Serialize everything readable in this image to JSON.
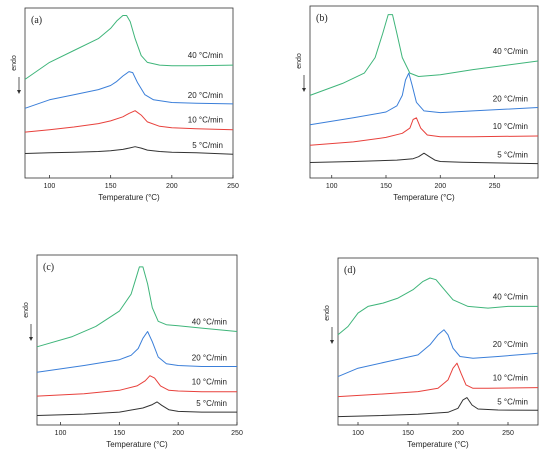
{
  "figure": {
    "endo_label": "endo"
  },
  "chart_data": [
    {
      "type": "line",
      "panel_label": "(a)",
      "xlabel": "Temperature (°C)",
      "ylabel": "",
      "xlim": [
        80,
        250
      ],
      "xticks": [
        100,
        150,
        200,
        250
      ],
      "ylim": [
        0,
        5
      ],
      "grid": false,
      "series": [
        {
          "name": "5 °C/min",
          "color": "#333333",
          "x": [
            80,
            100,
            120,
            140,
            150,
            160,
            165,
            170,
            175,
            180,
            190,
            200,
            220,
            250
          ],
          "y": [
            0.72,
            0.74,
            0.76,
            0.78,
            0.8,
            0.84,
            0.88,
            0.92,
            0.88,
            0.82,
            0.78,
            0.76,
            0.74,
            0.7
          ]
        },
        {
          "name": "10 °C/min",
          "color": "#e8413c",
          "x": [
            80,
            100,
            120,
            140,
            150,
            160,
            165,
            170,
            175,
            180,
            190,
            200,
            220,
            250
          ],
          "y": [
            1.35,
            1.42,
            1.5,
            1.6,
            1.68,
            1.8,
            1.9,
            1.98,
            1.85,
            1.65,
            1.52,
            1.48,
            1.45,
            1.42
          ]
        },
        {
          "name": "20 °C/min",
          "color": "#3b7fd9",
          "x": [
            80,
            100,
            120,
            140,
            150,
            155,
            160,
            165,
            168,
            172,
            178,
            185,
            200,
            220,
            250
          ],
          "y": [
            2.05,
            2.3,
            2.45,
            2.6,
            2.72,
            2.84,
            3.0,
            3.13,
            3.1,
            2.8,
            2.45,
            2.3,
            2.22,
            2.2,
            2.18
          ]
        },
        {
          "name": "40 °C/min",
          "color": "#3fb57a",
          "x": [
            80,
            100,
            120,
            140,
            150,
            155,
            160,
            163,
            166,
            170,
            175,
            180,
            190,
            200,
            220,
            250
          ],
          "y": [
            2.9,
            3.4,
            3.75,
            4.1,
            4.4,
            4.62,
            4.78,
            4.78,
            4.6,
            4.1,
            3.6,
            3.4,
            3.32,
            3.3,
            3.3,
            3.32
          ]
        }
      ]
    },
    {
      "type": "line",
      "panel_label": "(b)",
      "xlabel": "Temperature (°C)",
      "ylabel": "",
      "xlim": [
        80,
        290
      ],
      "xticks": [
        100,
        150,
        200,
        250
      ],
      "ylim": [
        0,
        5
      ],
      "grid": false,
      "series": [
        {
          "name": "5 °C/min",
          "color": "#333333",
          "x": [
            80,
            120,
            160,
            175,
            180,
            185,
            190,
            195,
            200,
            220,
            250,
            290
          ],
          "y": [
            0.45,
            0.48,
            0.52,
            0.56,
            0.62,
            0.72,
            0.62,
            0.52,
            0.48,
            0.46,
            0.44,
            0.42
          ]
        },
        {
          "name": "10 °C/min",
          "color": "#e8413c",
          "x": [
            80,
            120,
            150,
            165,
            172,
            175,
            178,
            182,
            188,
            200,
            230,
            290
          ],
          "y": [
            0.95,
            1.05,
            1.18,
            1.3,
            1.45,
            1.7,
            1.75,
            1.45,
            1.25,
            1.2,
            1.2,
            1.22
          ]
        },
        {
          "name": "20 °C/min",
          "color": "#3b7fd9",
          "x": [
            80,
            120,
            150,
            160,
            165,
            168,
            171,
            174,
            178,
            185,
            200,
            230,
            290
          ],
          "y": [
            1.55,
            1.75,
            1.92,
            2.1,
            2.4,
            2.85,
            3.05,
            2.7,
            2.2,
            1.95,
            1.9,
            1.95,
            2.05
          ]
        },
        {
          "name": "40 °C/min",
          "color": "#3fb57a",
          "x": [
            80,
            110,
            130,
            140,
            147,
            152,
            156,
            160,
            165,
            172,
            180,
            200,
            230,
            290
          ],
          "y": [
            2.4,
            2.75,
            3.05,
            3.5,
            4.2,
            4.75,
            4.75,
            4.2,
            3.5,
            3.05,
            2.95,
            3.0,
            3.15,
            3.4
          ]
        }
      ]
    },
    {
      "type": "line",
      "panel_label": "(c)",
      "xlabel": "Temperature (°C)",
      "ylabel": "",
      "xlim": [
        80,
        250
      ],
      "xticks": [
        100,
        150,
        200,
        250
      ],
      "ylim": [
        0,
        5
      ],
      "grid": false,
      "series": [
        {
          "name": "5 °C/min",
          "color": "#333333",
          "x": [
            80,
            120,
            150,
            170,
            178,
            182,
            186,
            192,
            200,
            220,
            250
          ],
          "y": [
            0.28,
            0.32,
            0.38,
            0.5,
            0.6,
            0.68,
            0.58,
            0.45,
            0.4,
            0.38,
            0.38
          ]
        },
        {
          "name": "10 °C/min",
          "color": "#e8413c",
          "x": [
            80,
            120,
            150,
            165,
            172,
            176,
            180,
            185,
            192,
            200,
            220,
            250
          ],
          "y": [
            0.85,
            0.92,
            1.02,
            1.15,
            1.3,
            1.45,
            1.38,
            1.15,
            1.02,
            1.0,
            0.98,
            0.98
          ]
        },
        {
          "name": "20 °C/min",
          "color": "#3b7fd9",
          "x": [
            80,
            120,
            150,
            160,
            166,
            170,
            174,
            178,
            183,
            190,
            200,
            220,
            250
          ],
          "y": [
            1.55,
            1.75,
            1.92,
            2.05,
            2.25,
            2.55,
            2.75,
            2.45,
            2.0,
            1.8,
            1.75,
            1.72,
            1.72
          ]
        },
        {
          "name": "40 °C/min",
          "color": "#3fb57a",
          "x": [
            80,
            110,
            130,
            150,
            160,
            164,
            167,
            170,
            174,
            178,
            183,
            190,
            200,
            220,
            250
          ],
          "y": [
            2.3,
            2.6,
            2.9,
            3.35,
            3.85,
            4.3,
            4.65,
            4.65,
            4.15,
            3.45,
            3.05,
            2.95,
            2.92,
            2.85,
            2.75
          ]
        }
      ]
    },
    {
      "type": "line",
      "panel_label": "(d)",
      "xlabel": "Temperature (°C)",
      "ylabel": "",
      "xlim": [
        80,
        280
      ],
      "xticks": [
        100,
        150,
        200,
        250
      ],
      "ylim": [
        0,
        5
      ],
      "grid": false,
      "series": [
        {
          "name": "5 °C/min",
          "color": "#333333",
          "x": [
            80,
            120,
            160,
            190,
            200,
            205,
            209,
            214,
            220,
            240,
            280
          ],
          "y": [
            0.25,
            0.28,
            0.32,
            0.38,
            0.5,
            0.75,
            0.82,
            0.6,
            0.48,
            0.45,
            0.44
          ]
        },
        {
          "name": "10 °C/min",
          "color": "#e8413c",
          "x": [
            80,
            120,
            160,
            180,
            190,
            195,
            199,
            203,
            208,
            215,
            230,
            280
          ],
          "y": [
            0.85,
            0.92,
            1.0,
            1.1,
            1.35,
            1.7,
            1.85,
            1.55,
            1.2,
            1.1,
            1.1,
            1.12
          ]
        },
        {
          "name": "20 °C/min",
          "color": "#3b7fd9",
          "x": [
            80,
            100,
            130,
            160,
            172,
            180,
            186,
            190,
            195,
            202,
            215,
            240,
            280
          ],
          "y": [
            1.45,
            1.7,
            1.9,
            2.1,
            2.4,
            2.7,
            2.85,
            2.7,
            2.3,
            2.05,
            2.0,
            2.05,
            2.15
          ]
        },
        {
          "name": "40 °C/min",
          "color": "#3fb57a",
          "x": [
            80,
            90,
            100,
            110,
            125,
            140,
            155,
            165,
            172,
            178,
            185,
            195,
            210,
            230,
            250,
            280
          ],
          "y": [
            2.7,
            2.95,
            3.35,
            3.55,
            3.65,
            3.8,
            4.05,
            4.3,
            4.4,
            4.35,
            4.1,
            3.75,
            3.55,
            3.5,
            3.55,
            3.55
          ]
        }
      ]
    }
  ]
}
